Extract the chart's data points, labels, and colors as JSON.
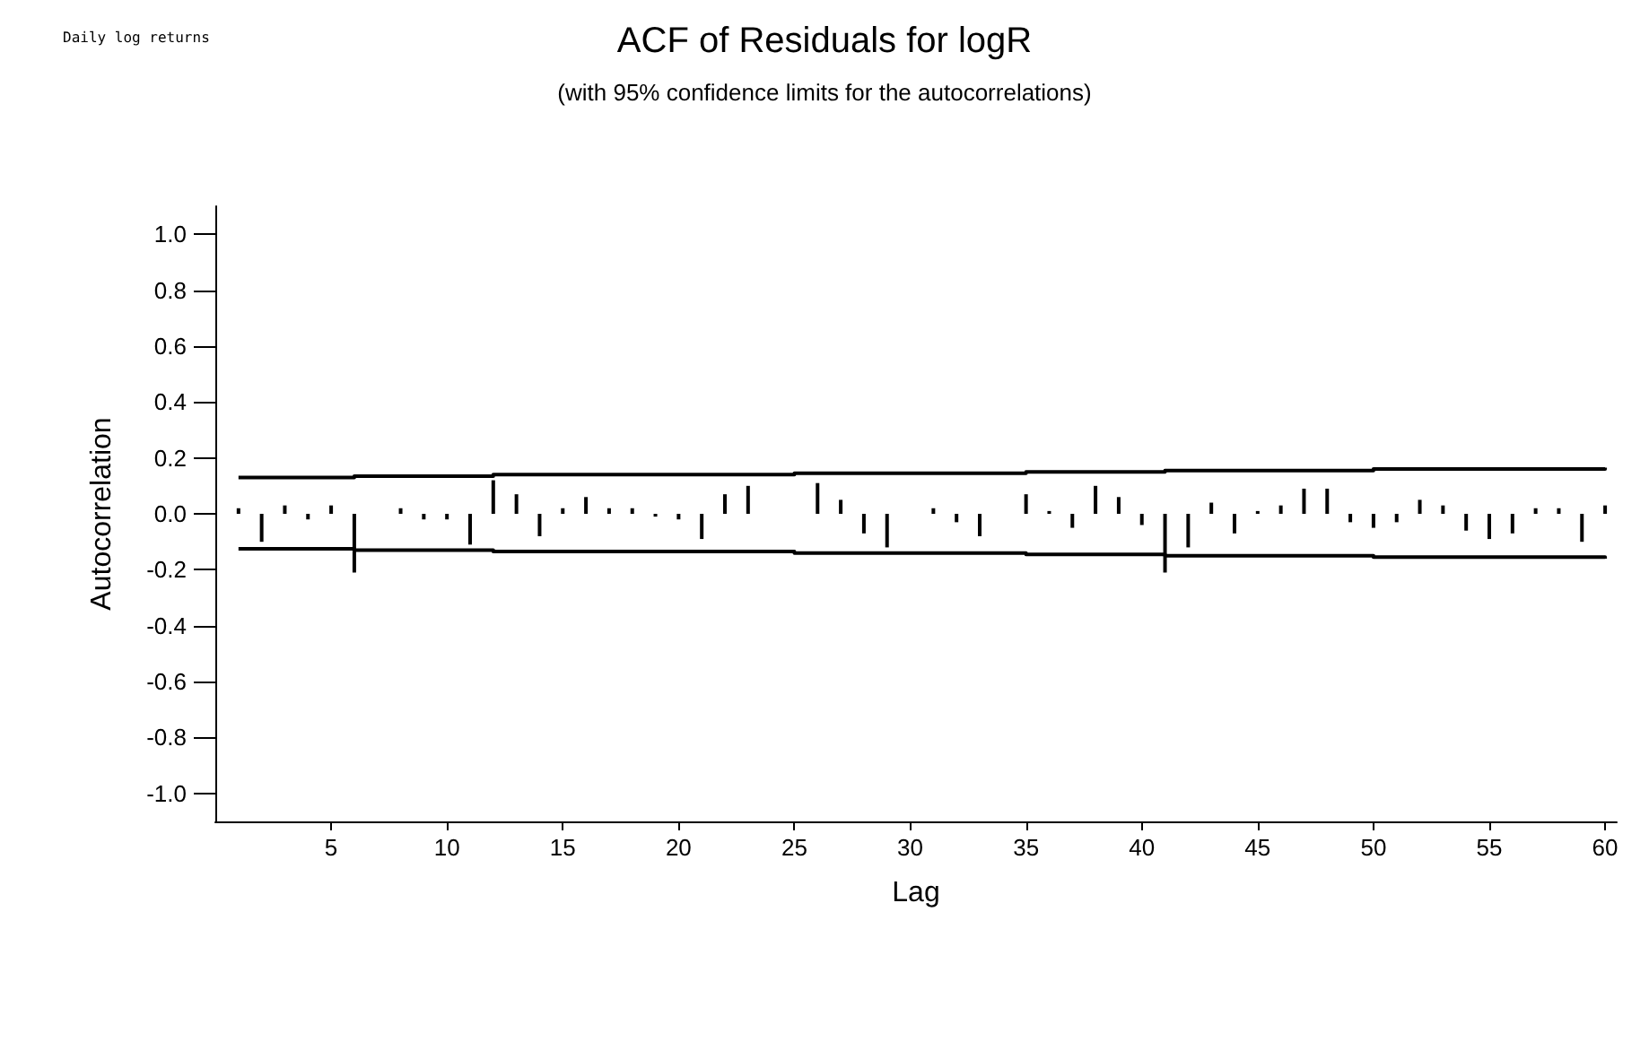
{
  "chart_data": {
    "type": "bar",
    "title": "ACF of Residuals for logR",
    "subtitle": "(with 95% confidence limits for the autocorrelations)",
    "xlabel": "Lag",
    "ylabel": "Autocorrelation",
    "annotations": [
      "Daily log returns"
    ],
    "xlim": [
      0,
      60.5
    ],
    "xticks": [
      5,
      10,
      15,
      20,
      25,
      30,
      35,
      40,
      45,
      50,
      55,
      60
    ],
    "ylim": [
      -1.1,
      1.1
    ],
    "yticks": [
      {
        "value": -1.0,
        "label": "-1.0"
      },
      {
        "value": -0.8,
        "label": "-0.8"
      },
      {
        "value": -0.6,
        "label": "-0.6"
      },
      {
        "value": -0.4,
        "label": "-0.4"
      },
      {
        "value": -0.2,
        "label": "-0.2"
      },
      {
        "value": 0.0,
        "label": "0.0"
      },
      {
        "value": 0.2,
        "label": "0.2"
      },
      {
        "value": 0.4,
        "label": "0.4"
      },
      {
        "value": 0.6,
        "label": "0.6"
      },
      {
        "value": 0.8,
        "label": "0.8"
      },
      {
        "value": 1.0,
        "label": "1.0"
      }
    ],
    "grid": false,
    "series": [
      {
        "color": "#000000",
        "x": [
          1,
          2,
          3,
          4,
          5,
          6,
          7,
          8,
          9,
          10,
          11,
          12,
          13,
          14,
          15,
          16,
          17,
          18,
          19,
          20,
          21,
          22,
          23,
          24,
          25,
          26,
          27,
          28,
          29,
          30,
          31,
          32,
          33,
          34,
          35,
          36,
          37,
          38,
          39,
          40,
          41,
          42,
          43,
          44,
          45,
          46,
          47,
          48,
          49,
          50,
          51,
          52,
          53,
          54,
          55,
          56,
          57,
          58,
          59,
          60
        ],
        "values": [
          0.02,
          -0.1,
          0.03,
          -0.02,
          0.03,
          -0.21,
          0.0,
          0.02,
          -0.02,
          -0.02,
          -0.11,
          0.12,
          0.07,
          -0.08,
          0.02,
          0.06,
          0.02,
          0.02,
          -0.01,
          -0.02,
          -0.09,
          0.07,
          0.1,
          0.0,
          0.0,
          0.11,
          0.05,
          -0.07,
          -0.12,
          0.0,
          0.02,
          -0.03,
          -0.08,
          0.0,
          0.07,
          0.01,
          -0.05,
          0.1,
          0.06,
          -0.04,
          -0.21,
          -0.12,
          0.04,
          -0.07,
          0.01,
          0.03,
          0.09,
          0.09,
          -0.03,
          -0.05,
          -0.03,
          0.05,
          0.03,
          -0.06,
          -0.09,
          -0.07,
          0.02,
          0.02,
          -0.1,
          0.03
        ]
      },
      {
        "type": "step",
        "color": "#000000",
        "x": [
          1,
          6,
          12,
          25,
          35,
          41,
          50,
          60
        ],
        "values": [
          0.13,
          0.135,
          0.14,
          0.145,
          0.15,
          0.155,
          0.16,
          0.165
        ]
      },
      {
        "type": "step",
        "color": "#000000",
        "x": [
          1,
          6,
          12,
          25,
          35,
          41,
          50,
          60
        ],
        "values": [
          -0.125,
          -0.13,
          -0.135,
          -0.14,
          -0.145,
          -0.15,
          -0.155,
          -0.16
        ]
      }
    ]
  }
}
